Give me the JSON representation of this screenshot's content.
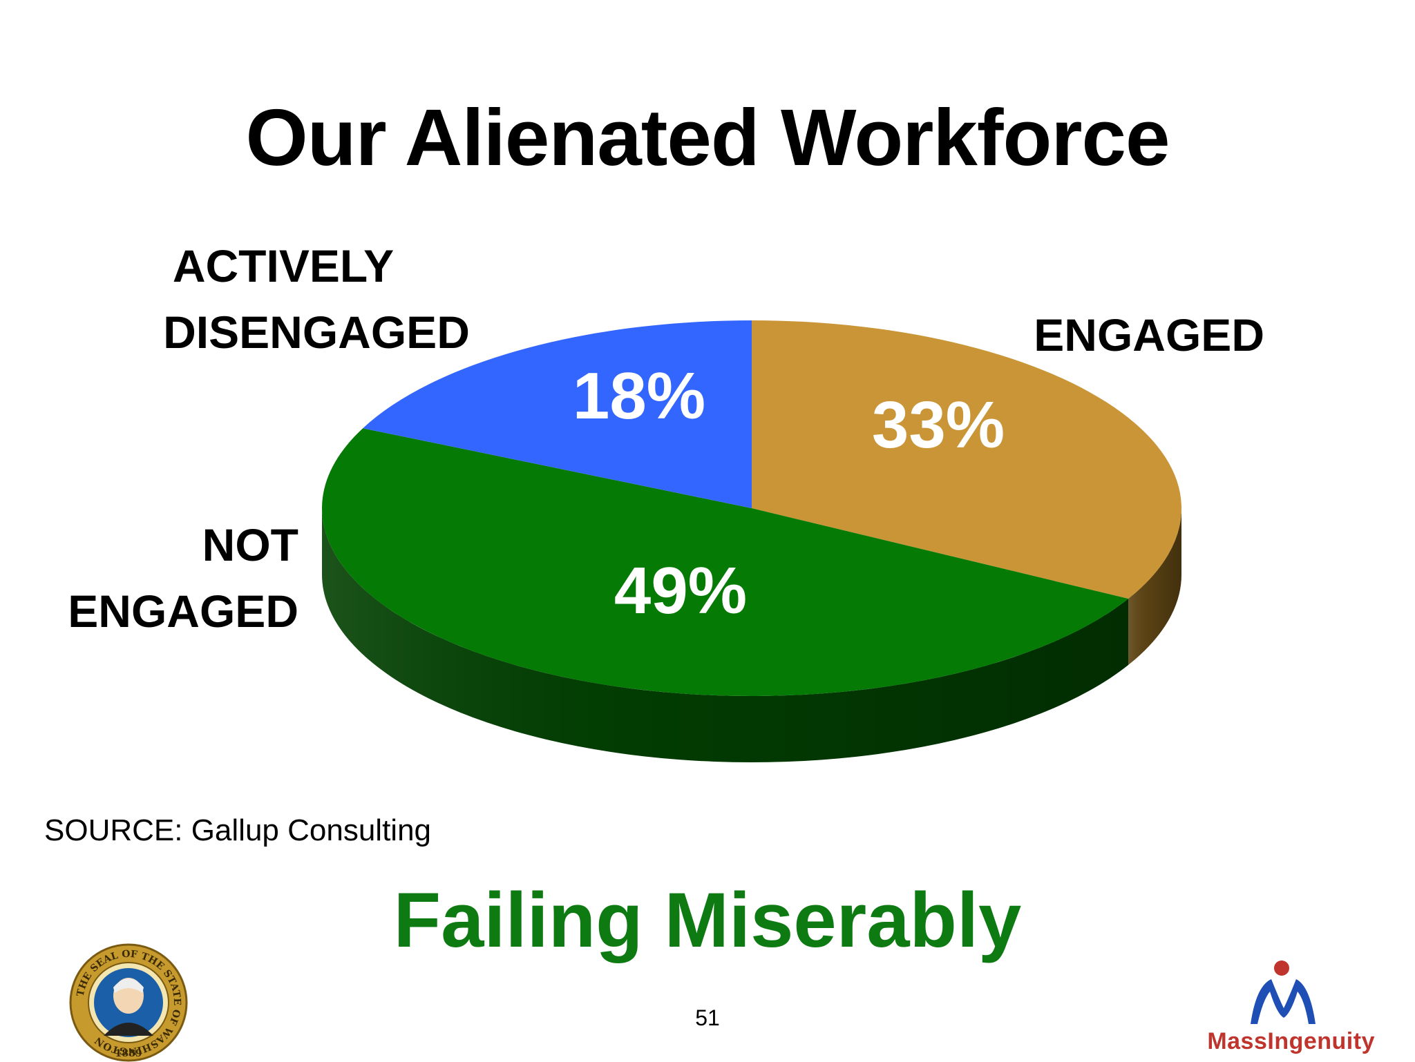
{
  "title": "Our Alienated Workforce",
  "chart_data": {
    "type": "pie",
    "title": "Our Alienated Workforce",
    "slices": [
      {
        "label_lines": [
          "ENGAGED"
        ],
        "value": 33,
        "value_label": "33%",
        "color": "#c99537",
        "side_color": "#5e4514"
      },
      {
        "label_lines": [
          "NOT",
          "ENGAGED"
        ],
        "value": 49,
        "value_label": "49%",
        "color": "#057a05",
        "side_color": "#024002"
      },
      {
        "label_lines": [
          "ACTIVELY",
          "DISENGAGED"
        ],
        "value": 18,
        "value_label": "18%",
        "color": "#3366ff",
        "side_color": "#1a3380"
      }
    ],
    "start_angle_deg": 0,
    "direction": "clockwise",
    "legend": "none",
    "style": "3d-tilted"
  },
  "source": "SOURCE: Gallup Consulting",
  "tagline": "Failing Miserably",
  "page_number": "51",
  "seal": {
    "ring_text": "THE SEAL OF THE STATE OF WASHINGTON",
    "year": "1889",
    "ring_color": "#c79a2e",
    "center_color": "#1b5fa8"
  },
  "logo": {
    "text": "MassIngenuity",
    "icon": "person-figure-icon",
    "color": "#c0342e",
    "accent": "#1f4fb5"
  }
}
